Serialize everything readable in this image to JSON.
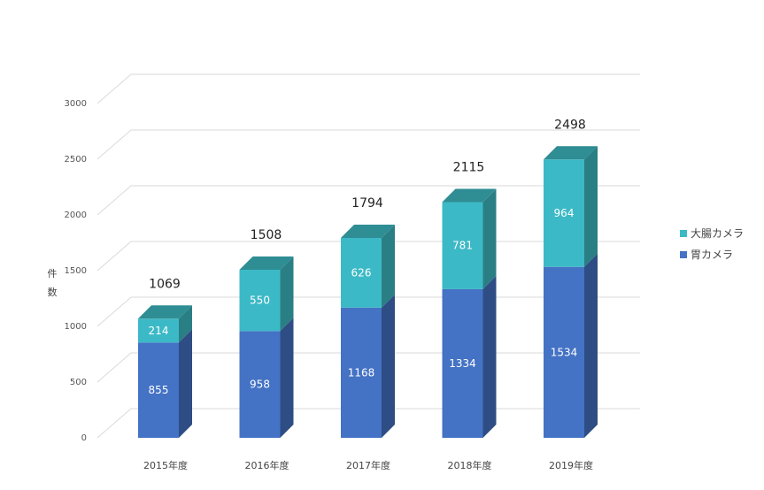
{
  "chart_data": {
    "type": "bar",
    "stacked": true,
    "three_d": true,
    "ylabel": "件数",
    "ylim": [
      0,
      3000
    ],
    "yticks": [
      0,
      500,
      1000,
      1500,
      2000,
      2500,
      3000
    ],
    "categories": [
      "2015年度",
      "2016年度",
      "2017年度",
      "2018年度",
      "2019年度"
    ],
    "series": [
      {
        "name": "胃カメラ",
        "values": [
          855,
          958,
          1168,
          1334,
          1534
        ],
        "color": "#4472c4",
        "side": "#2e4d84",
        "top": "#5b87d1"
      },
      {
        "name": "大腸カメラ",
        "values": [
          214,
          550,
          626,
          781,
          964
        ],
        "color": "#3cb9c6",
        "side": "#2a7f85",
        "top": "#2f8d94"
      }
    ],
    "totals": [
      1069,
      1508,
      1794,
      2115,
      2498
    ],
    "legend": {
      "position": "right",
      "order": [
        "大腸カメラ",
        "胃カメラ"
      ]
    },
    "grid": true
  }
}
